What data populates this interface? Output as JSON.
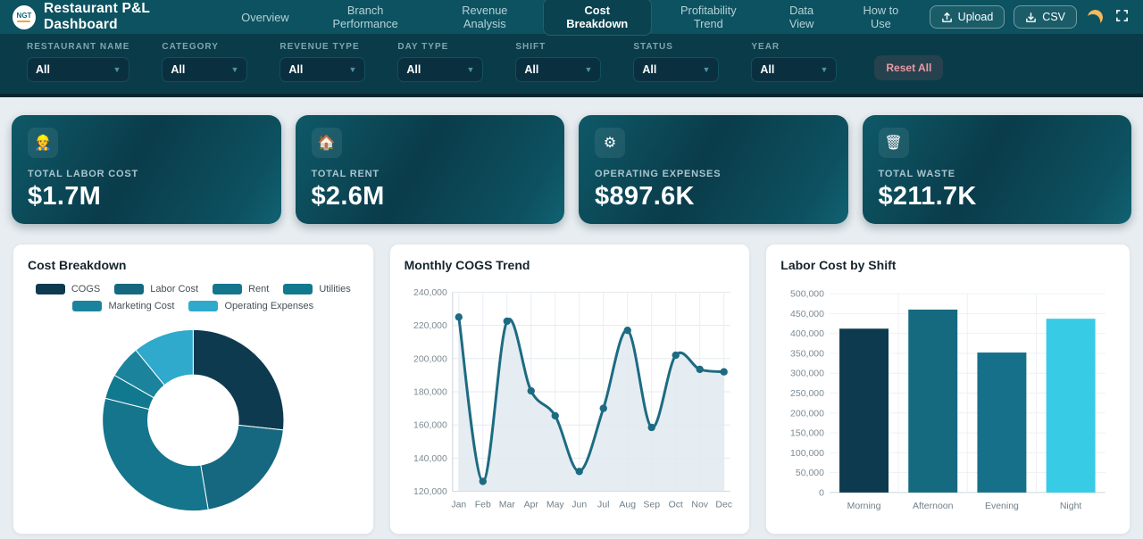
{
  "header": {
    "logo_text": "NGT",
    "title": "Restaurant P&L Dashboard",
    "nav": [
      {
        "label": "Overview",
        "active": false
      },
      {
        "label": "Branch Performance",
        "active": false
      },
      {
        "label": "Revenue Analysis",
        "active": false
      },
      {
        "label": "Cost Breakdown",
        "active": true
      },
      {
        "label": "Profitability Trend",
        "active": false
      },
      {
        "label": "Data View",
        "active": false
      },
      {
        "label": "How to Use",
        "active": false
      }
    ],
    "upload_label": "Upload",
    "csv_label": "CSV",
    "theme_icon": "moon-icon",
    "fullscreen_icon": "fullscreen-icon"
  },
  "filters": {
    "fields": [
      {
        "label": "RESTAURANT NAME",
        "value": "All"
      },
      {
        "label": "CATEGORY",
        "value": "All"
      },
      {
        "label": "REVENUE TYPE",
        "value": "All"
      },
      {
        "label": "DAY TYPE",
        "value": "All"
      },
      {
        "label": "SHIFT",
        "value": "All"
      },
      {
        "label": "STATUS",
        "value": "All"
      },
      {
        "label": "YEAR",
        "value": "All"
      }
    ],
    "reset_label": "Reset All"
  },
  "kpis": [
    {
      "icon_name": "worker-icon",
      "icon_glyph": "👷",
      "label": "TOTAL LABOR COST",
      "value": "$1.7M"
    },
    {
      "icon_name": "house-icon",
      "icon_glyph": "🏠",
      "label": "TOTAL RENT",
      "value": "$2.6M"
    },
    {
      "icon_name": "gear-icon",
      "icon_glyph": "⚙",
      "label": "OPERATING EXPENSES",
      "value": "$897.6K"
    },
    {
      "icon_name": "trash-icon",
      "icon_glyph": "🗑",
      "label": "TOTAL WASTE",
      "value": "$211.7K"
    }
  ],
  "colors": {
    "header_bg": "#0d5260",
    "filter_bg": "#0a3b48",
    "page_bg": "#e7edf1",
    "kpi_card_teal": "#0d5160",
    "reset_text": "#e89aa3"
  },
  "chart_data": [
    {
      "type": "pie",
      "title": "Cost Breakdown",
      "labels": [
        "COGS",
        "Labor Cost",
        "Rent",
        "Utilities",
        "Marketing Cost",
        "Operating Expenses"
      ],
      "values": [
        2200000,
        1700000,
        2600000,
        360000,
        480000,
        897600
      ],
      "colors": [
        "#0d3a4e",
        "#156880",
        "#15758c",
        "#11798f",
        "#1b849c",
        "#2fa9cc"
      ],
      "donut_hole": 0.5,
      "legend_rows": [
        [
          0,
          1,
          2,
          3
        ],
        [
          4,
          5
        ]
      ],
      "legend_position": "top"
    },
    {
      "type": "line",
      "title": "Monthly COGS Trend",
      "x": [
        "Jan",
        "Feb",
        "Mar",
        "Apr",
        "May",
        "Jun",
        "Jul",
        "Aug",
        "Sep",
        "Oct",
        "Nov",
        "Dec"
      ],
      "values": [
        225000,
        126000,
        222500,
        180500,
        165500,
        132000,
        170000,
        217000,
        158500,
        202000,
        193500,
        192000
      ],
      "ylim": [
        120000,
        240000
      ],
      "ytick_step": 20000,
      "line_color": "#1d6b82",
      "fill_color": "#e1eaf0",
      "grid": true,
      "markers": true
    },
    {
      "type": "bar",
      "title": "Labor Cost by Shift",
      "categories": [
        "Morning",
        "Afternoon",
        "Evening",
        "Night"
      ],
      "values": [
        412000,
        460000,
        352000,
        437000
      ],
      "colors": [
        "#0d3a4e",
        "#156a80",
        "#177089",
        "#38cbe6"
      ],
      "ylim": [
        0,
        500000
      ],
      "ytick_step": 50000,
      "grid": true
    }
  ]
}
